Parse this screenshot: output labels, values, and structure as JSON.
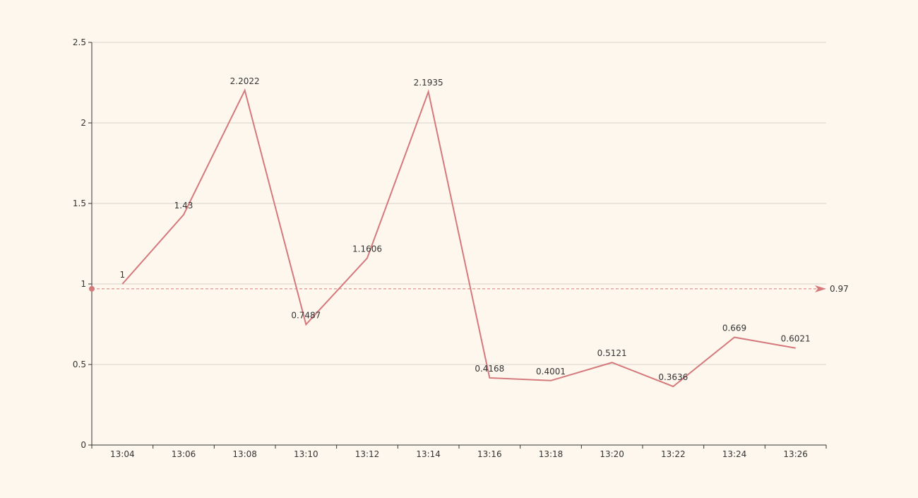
{
  "chart_data": {
    "type": "line",
    "title": "",
    "xlabel": "",
    "ylabel": "",
    "categories": [
      "13:04",
      "13:06",
      "13:08",
      "13:10",
      "13:12",
      "13:14",
      "13:16",
      "13:18",
      "13:20",
      "13:22",
      "13:24",
      "13:26"
    ],
    "series": [
      {
        "values": [
          1,
          1.43,
          2.2022,
          0.7487,
          1.1606,
          2.1935,
          0.4168,
          0.4001,
          0.5121,
          0.3636,
          0.669,
          0.6021
        ],
        "labels": [
          "1",
          "1.43",
          "2.2022",
          "0.7487",
          "1.1606",
          "2.1935",
          "0.4168",
          "0.4001",
          "0.5121",
          "0.3636",
          "0.669",
          "0.6021"
        ],
        "color": "#d4797c"
      }
    ],
    "ylim": [
      0,
      2.5
    ],
    "yticks": [
      0,
      0.5,
      1,
      1.5,
      2,
      2.5
    ],
    "ytick_labels": [
      "0",
      "0.5",
      "1",
      "1.5",
      "2",
      "2.5"
    ],
    "grid": true,
    "mark_line": {
      "value": 0.97,
      "label": "0.97",
      "style": "dashed",
      "color": "#d4797c"
    },
    "colors": {
      "background": "#fef7ee",
      "grid": "#d8d4cc",
      "axis": "#333333",
      "text": "#333333"
    }
  }
}
